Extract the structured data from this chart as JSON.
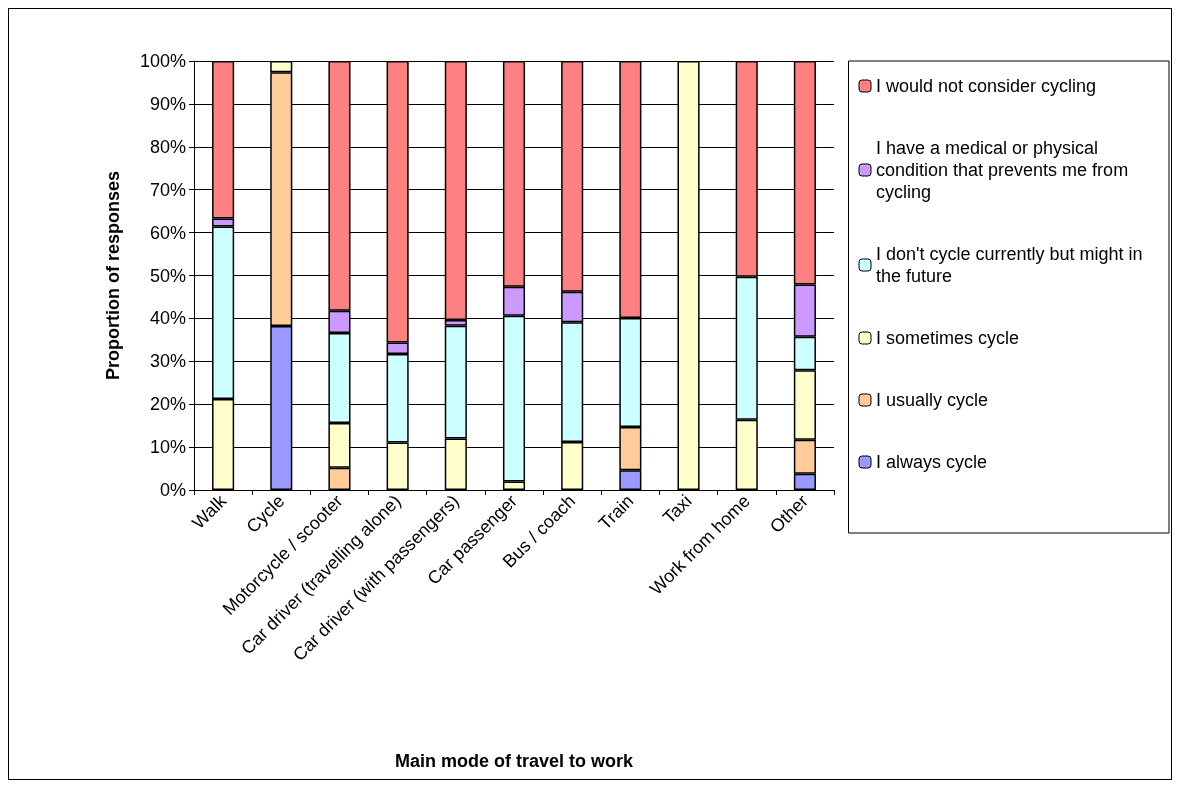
{
  "chart_data": {
    "type": "bar",
    "stacked": true,
    "xlabel": "Main mode of travel to work",
    "ylabel": "Proportion of responses",
    "categories": [
      "Walk",
      "Cycle",
      "Motorcycle / scooter",
      "Car driver (travelling alone)",
      "Car driver (with passengers)",
      "Car passenger",
      "Bus / coach",
      "Train",
      "Taxi",
      "Work from home",
      "Other"
    ],
    "series": [
      {
        "name": "I always cycle",
        "color": "#9999ff",
        "values": [
          null,
          38.2,
          null,
          null,
          null,
          null,
          null,
          4.6,
          null,
          null,
          3.8
        ]
      },
      {
        "name": "I usually cycle",
        "color": "#ffcc99",
        "values": [
          null,
          59.2,
          5.2,
          null,
          null,
          null,
          null,
          10.1,
          null,
          null,
          7.9
        ]
      },
      {
        "name": "I sometimes cycle",
        "color": "#ffffcc",
        "values": [
          21.2,
          2.6,
          10.4,
          11.1,
          12.0,
          2.0,
          11.2,
          null,
          100,
          16.4,
          16.2
        ]
      },
      {
        "name": "I don't cycle currently but might in the future",
        "color": "#ccffff",
        "values": [
          40.2,
          null,
          21.0,
          20.6,
          26.3,
          38.6,
          27.9,
          25.4,
          null,
          33.3,
          7.8
        ]
      },
      {
        "name": "I have a medical or physical condition that prevents me from cycling",
        "color": "#cc99ff",
        "values": [
          1.9,
          null,
          5.2,
          2.7,
          1.3,
          6.8,
          7.1,
          null,
          null,
          null,
          12.2
        ]
      },
      {
        "name": "I would not consider cycling",
        "color": "#ff8080",
        "values": [
          36.7,
          null,
          58.2,
          65.6,
          60.4,
          52.6,
          53.8,
          59.9,
          null,
          50.3,
          52.1
        ]
      }
    ],
    "ylim": [
      0,
      100
    ],
    "yticks": [
      {
        "value": 0,
        "label": "0%"
      },
      {
        "value": 10,
        "label": "10%"
      },
      {
        "value": 20,
        "label": "20%"
      },
      {
        "value": 30,
        "label": "30%"
      },
      {
        "value": 40,
        "label": "40%"
      },
      {
        "value": 50,
        "label": "50%"
      },
      {
        "value": 60,
        "label": "60%"
      },
      {
        "value": 70,
        "label": "70%"
      },
      {
        "value": 80,
        "label": "80%"
      },
      {
        "value": 90,
        "label": "90%"
      },
      {
        "value": 100,
        "label": "100%"
      }
    ],
    "grid": "y",
    "legend": "right"
  }
}
